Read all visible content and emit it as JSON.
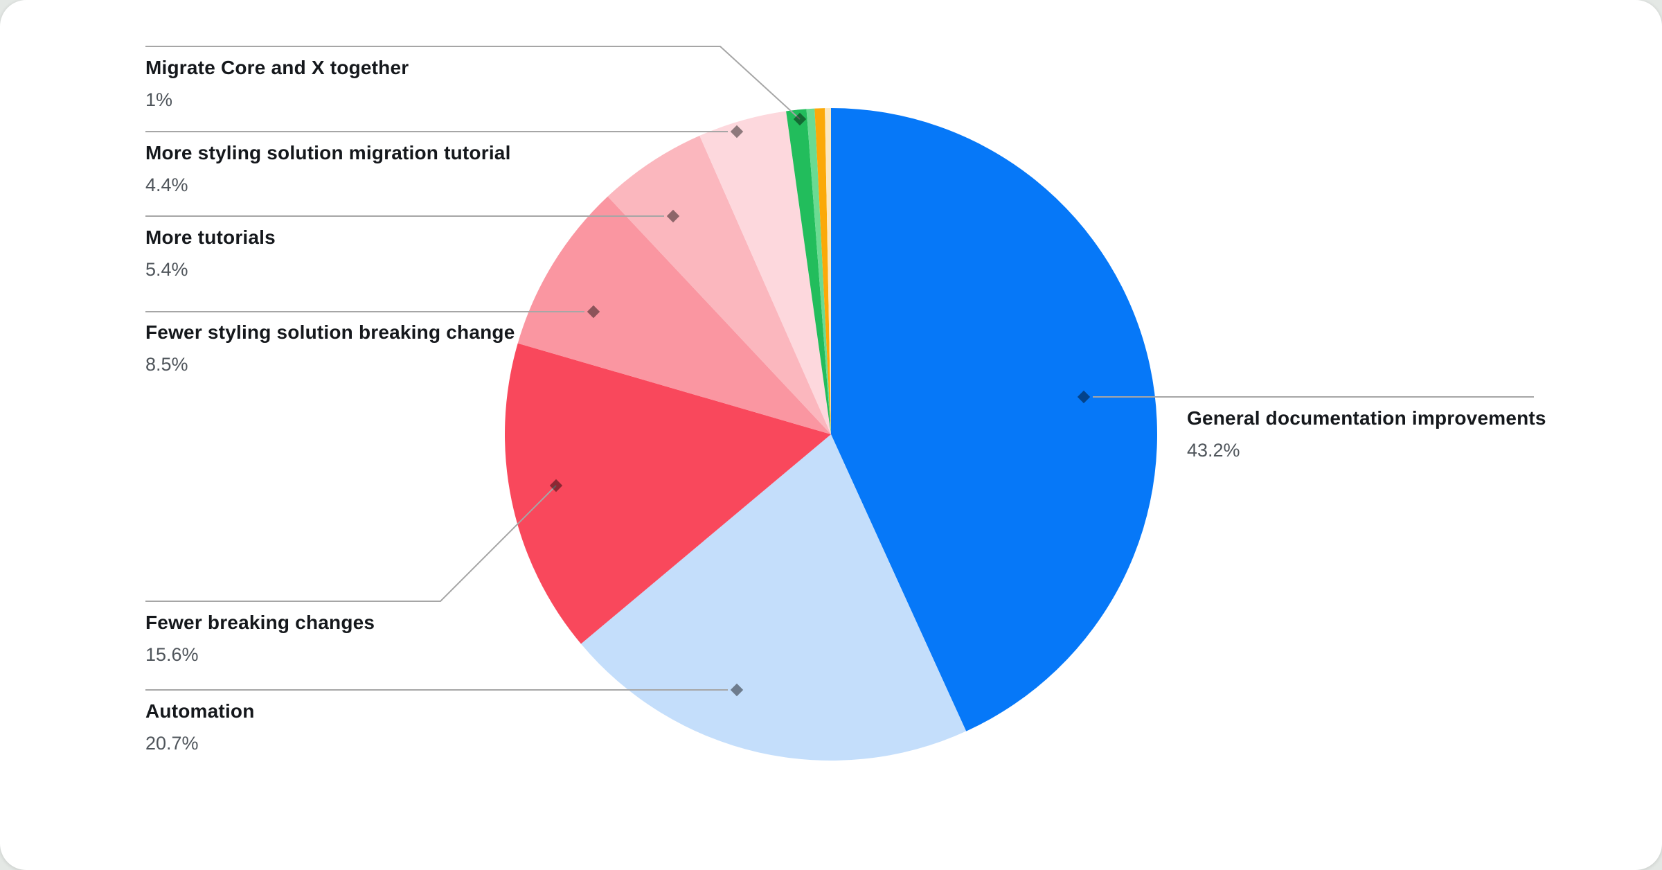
{
  "page": {
    "background_color": "#E4E8E5",
    "card_color": "#FFFFFF"
  },
  "chart_data": {
    "type": "pie",
    "start_angle_deg": 0,
    "direction": "clockwise",
    "legend_position": "none",
    "leader_line_color": "#A6A6A6",
    "label_title_color": "#15181C",
    "label_pct_color": "#4F555B",
    "slices": [
      {
        "name": "General documentation improvements",
        "value": 43.2,
        "pct_label": "43.2%",
        "color": "#0678F8",
        "label_visible": true
      },
      {
        "name": "Automation",
        "value": 20.7,
        "pct_label": "20.7%",
        "color": "#C4DEFB",
        "label_visible": true
      },
      {
        "name": "Fewer breaking changes",
        "value": 15.6,
        "pct_label": "15.6%",
        "color": "#F9485C",
        "label_visible": true
      },
      {
        "name": "Fewer styling solution breaking change",
        "value": 8.5,
        "pct_label": "8.5%",
        "color": "#FA96A1",
        "label_visible": true
      },
      {
        "name": "More tutorials",
        "value": 5.4,
        "pct_label": "5.4%",
        "color": "#FBB7BE",
        "label_visible": true
      },
      {
        "name": "More styling solution migration tutorial",
        "value": 4.4,
        "pct_label": "4.4%",
        "color": "#FDD8DD",
        "label_visible": true
      },
      {
        "name": "Migrate Core and X together",
        "value": 1,
        "pct_label": "1%",
        "color": "#22BD5C",
        "label_visible": true
      },
      {
        "name": "",
        "value": 0.4,
        "pct_label": "",
        "color": "#6ADB92",
        "label_visible": false
      },
      {
        "name": "",
        "value": 0.5,
        "pct_label": "",
        "color": "#FBA908",
        "label_visible": false
      },
      {
        "name": "",
        "value": 0.3,
        "pct_label": "",
        "color": "#FBE7C0",
        "label_visible": false
      }
    ]
  }
}
